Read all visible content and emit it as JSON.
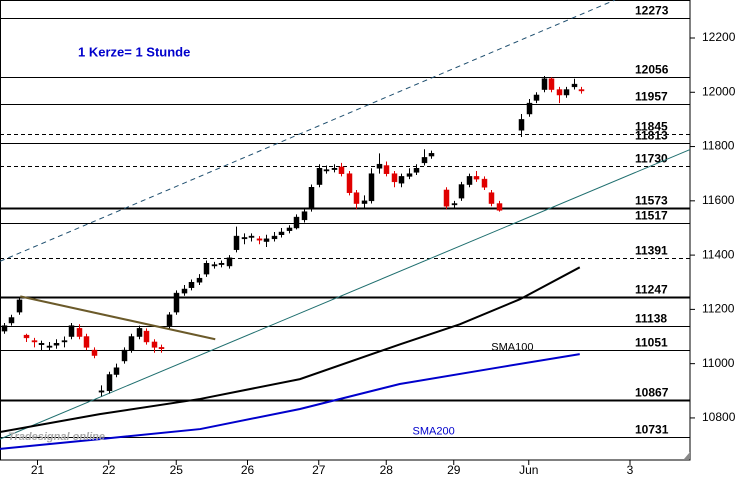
{
  "chart_data": {
    "type": "candlestick",
    "note": "1 Kerze= 1 Stunde",
    "logo": "Tradesignal online",
    "x": [
      0,
      1,
      2,
      3,
      4,
      5,
      6,
      7,
      8,
      9,
      10,
      11,
      12,
      13,
      14,
      15,
      16,
      17,
      18,
      19,
      20,
      21,
      22,
      23,
      24,
      25,
      26,
      27,
      28,
      29,
      30,
      31,
      32,
      33,
      34,
      35,
      36,
      37,
      38,
      39,
      40,
      41,
      42,
      43,
      44,
      45,
      46,
      47,
      48,
      49,
      50,
      51,
      52,
      53,
      54,
      55,
      56,
      57,
      59,
      60,
      61,
      62,
      63,
      64,
      65,
      66,
      69,
      70,
      71,
      72,
      73,
      74,
      75,
      76,
      77
    ],
    "open": [
      11120,
      11150,
      11190,
      11105,
      11085,
      11070,
      11060,
      11068,
      11080,
      11100,
      11130,
      11100,
      11050,
      10895,
      10900,
      10960,
      11010,
      11050,
      11100,
      11120,
      11080,
      11060,
      11140,
      11190,
      11260,
      11280,
      11300,
      11330,
      11360,
      11365,
      11360,
      11420,
      11460,
      11465,
      11460,
      11450,
      11460,
      11475,
      11490,
      11500,
      11530,
      11570,
      11660,
      11710,
      11715,
      11725,
      11700,
      11630,
      11590,
      11600,
      11720,
      11730,
      11700,
      11665,
      11690,
      11705,
      11740,
      11765,
      11640,
      11585,
      11610,
      11660,
      11690,
      11680,
      11630,
      11590,
      11860,
      11920,
      11970,
      12010,
      12050,
      12010,
      11990,
      12020,
      12010
    ],
    "high": [
      11150,
      11180,
      11247,
      11110,
      11095,
      11085,
      11080,
      11090,
      11100,
      11150,
      11145,
      11110,
      11060,
      10920,
      10970,
      11000,
      11060,
      11110,
      11140,
      11130,
      11090,
      11070,
      11190,
      11270,
      11290,
      11310,
      11330,
      11380,
      11375,
      11380,
      11400,
      11505,
      11480,
      11480,
      11470,
      11475,
      11485,
      11500,
      11510,
      11550,
      11570,
      11660,
      11735,
      11730,
      11735,
      11740,
      11710,
      11640,
      11620,
      11720,
      11775,
      11745,
      11710,
      11700,
      11720,
      11735,
      11790,
      11785,
      11650,
      11600,
      11670,
      11700,
      11710,
      11690,
      11640,
      11600,
      11920,
      11975,
      12000,
      12060,
      12055,
      12020,
      12020,
      12050,
      12020
    ],
    "low": [
      11110,
      11140,
      11180,
      11080,
      11060,
      11050,
      11050,
      11055,
      11060,
      11090,
      11090,
      11050,
      11020,
      10880,
      10890,
      10950,
      11000,
      11040,
      11090,
      11070,
      11040,
      11040,
      11130,
      11180,
      11250,
      11270,
      11290,
      11320,
      11350,
      11355,
      11350,
      11410,
      11440,
      11450,
      11440,
      11430,
      11450,
      11465,
      11480,
      11495,
      11520,
      11560,
      11650,
      11700,
      11705,
      11690,
      11620,
      11570,
      11575,
      11590,
      11700,
      11690,
      11650,
      11650,
      11680,
      11695,
      11730,
      11755,
      11570,
      11575,
      11600,
      11650,
      11670,
      11640,
      11580,
      11560,
      11835,
      11910,
      11960,
      12000,
      12000,
      11960,
      11980,
      12010,
      11995
    ],
    "close": [
      11140,
      11170,
      11235,
      11095,
      11080,
      11075,
      11065,
      11075,
      11085,
      11140,
      11100,
      11060,
      11030,
      10900,
      10960,
      10985,
      11050,
      11100,
      11130,
      11080,
      11060,
      11055,
      11180,
      11260,
      11275,
      11300,
      11315,
      11370,
      11365,
      11370,
      11390,
      11470,
      11465,
      11470,
      11455,
      11460,
      11470,
      11485,
      11500,
      11540,
      11560,
      11650,
      11720,
      11715,
      11720,
      11700,
      11630,
      11590,
      11600,
      11700,
      11735,
      11700,
      11670,
      11690,
      11700,
      11720,
      11760,
      11775,
      11580,
      11590,
      11660,
      11690,
      11680,
      11650,
      11590,
      11565,
      11900,
      11960,
      11990,
      12050,
      12010,
      11990,
      12010,
      12030,
      12005
    ],
    "up_color": "#000000",
    "down_color": "#e00000",
    "xlim": [
      -0.5,
      91.5
    ],
    "ylim": [
      10645,
      12340
    ],
    "xticks": [
      {
        "value": 4.5,
        "label": "21"
      },
      {
        "value": 14,
        "label": "22"
      },
      {
        "value": 23,
        "label": "25"
      },
      {
        "value": 32.5,
        "label": "26"
      },
      {
        "value": 42,
        "label": "27"
      },
      {
        "value": 51,
        "label": "28"
      },
      {
        "value": 60,
        "label": "29"
      },
      {
        "value": 70,
        "label": "Jun"
      },
      {
        "value": 83.5,
        "label": "3"
      }
    ],
    "yticks": [
      10800,
      11000,
      11200,
      11400,
      11600,
      11800,
      12000,
      12200
    ],
    "levels": [
      {
        "value": 12273,
        "style": "solid"
      },
      {
        "value": 12056,
        "style": "solid"
      },
      {
        "value": 11957,
        "style": "solid"
      },
      {
        "value": 11845,
        "style": "dashed"
      },
      {
        "value": 11813,
        "style": "solid"
      },
      {
        "value": 11730,
        "style": "dashed"
      },
      {
        "value": 11573,
        "style": "thick"
      },
      {
        "value": 11517,
        "style": "solid"
      },
      {
        "value": 11391,
        "style": "dashed"
      },
      {
        "value": 11247,
        "style": "thick"
      },
      {
        "value": 11138,
        "style": "solid"
      },
      {
        "value": 11051,
        "style": "solid"
      },
      {
        "value": 10867,
        "style": "thick"
      },
      {
        "value": 10731,
        "style": "solid"
      }
    ],
    "series": [
      {
        "name": "SMA100",
        "color": "#000000",
        "x": [
          -0.5,
          12.8,
          26.2,
          39.5,
          52.8,
          60.8,
          68.8,
          76.8
        ],
        "values": [
          10748,
          10814,
          10870,
          10943,
          11071,
          11145,
          11237,
          11355
        ],
        "label_x": 65,
        "label_value": 11060
      },
      {
        "name": "SMA200",
        "color": "#0000cc",
        "x": [
          -0.5,
          12.8,
          26.2,
          39.5,
          52.8,
          66.2,
          76.8
        ],
        "values": [
          10686,
          10722,
          10759,
          10833,
          10925,
          10987,
          11035
        ],
        "label_x": 54.5,
        "label_value": 10750
      }
    ],
    "trendlines": [
      {
        "color": "#1f4f6f",
        "dash": true,
        "x": [
          -0.5,
          81.5
        ],
        "values": [
          11377,
          12340
        ]
      },
      {
        "color": "#1f6f6f",
        "dash": false,
        "x": [
          -0.5,
          91.5
        ],
        "values": [
          10722,
          11789
        ]
      },
      {
        "color": "#6b5a2a",
        "dash": false,
        "x": [
          2.2,
          28.2
        ],
        "values": [
          11248,
          11090
        ]
      }
    ]
  }
}
